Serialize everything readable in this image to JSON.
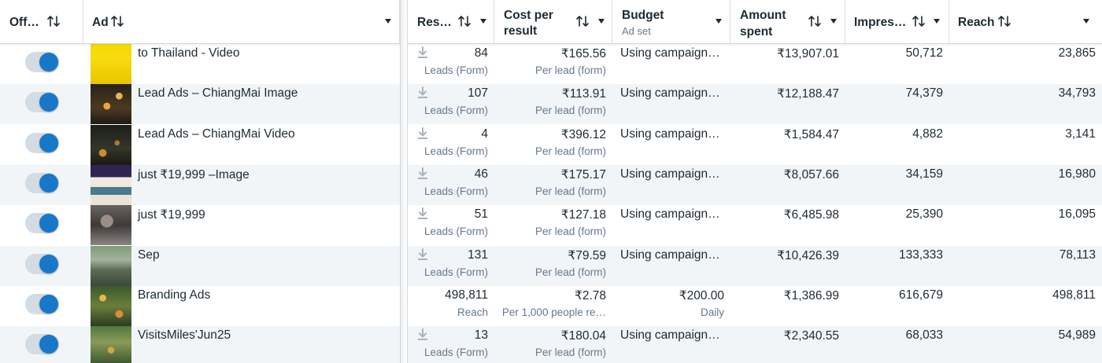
{
  "columns": {
    "toggle": "Off…",
    "ad": "Ad",
    "results": "Res…",
    "cost_line1": "Cost per",
    "cost_line2": "result",
    "budget": "Budget",
    "budget_sub": "Ad set",
    "spent_line1": "Amount",
    "spent_line2": "spent",
    "impressions": "Impres…",
    "reach": "Reach"
  },
  "rows": [
    {
      "on": true,
      "ad_name": "to Thailand - Video",
      "thumb": "yellow-banner",
      "results": "84",
      "results_type": "Leads (Form)",
      "download": true,
      "cost": "₹165.56",
      "cost_type": "Per lead (form)",
      "budget": "Using campaign…",
      "budget_sub": "",
      "spent": "₹13,907.01",
      "impressions": "50,712",
      "reach": "23,865"
    },
    {
      "on": true,
      "ad_name": "Lead Ads – ChiangMai Image",
      "thumb": "lanterns-night",
      "results": "107",
      "results_type": "Leads (Form)",
      "download": true,
      "cost": "₹113.91",
      "cost_type": "Per lead (form)",
      "budget": "Using campaign…",
      "budget_sub": "",
      "spent": "₹12,188.47",
      "impressions": "74,379",
      "reach": "34,793"
    },
    {
      "on": true,
      "ad_name": "Lead Ads – ChiangMai Video",
      "thumb": "lanterns-dark",
      "results": "4",
      "results_type": "Leads (Form)",
      "download": true,
      "cost": "₹396.12",
      "cost_type": "Per lead (form)",
      "budget": "Using campaign…",
      "budget_sub": "",
      "spent": "₹1,584.47",
      "impressions": "4,882",
      "reach": "3,141"
    },
    {
      "on": true,
      "ad_name": "just ₹19,999 –Image",
      "thumb": "flyer-collage",
      "results": "46",
      "results_type": "Leads (Form)",
      "download": true,
      "cost": "₹175.17",
      "cost_type": "Per lead (form)",
      "budget": "Using campaign…",
      "budget_sub": "",
      "spent": "₹8,057.66",
      "impressions": "34,159",
      "reach": "16,980"
    },
    {
      "on": true,
      "ad_name": "just ₹19,999",
      "thumb": "grey-photo",
      "results": "51",
      "results_type": "Leads (Form)",
      "download": true,
      "cost": "₹127.18",
      "cost_type": "Per lead (form)",
      "budget": "Using campaign…",
      "budget_sub": "",
      "spent": "₹6,485.98",
      "impressions": "25,390",
      "reach": "16,095"
    },
    {
      "on": true,
      "ad_name": "Sep",
      "thumb": "green-landscape",
      "results": "131",
      "results_type": "Leads (Form)",
      "download": true,
      "cost": "₹79.59",
      "cost_type": "Per lead (form)",
      "budget": "Using campaign…",
      "budget_sub": "",
      "spent": "₹10,426.39",
      "impressions": "133,333",
      "reach": "78,113"
    },
    {
      "on": true,
      "ad_name": "Branding Ads",
      "thumb": "festival-lights",
      "results": "498,811",
      "results_type": "Reach",
      "download": false,
      "cost": "₹2.78",
      "cost_type": "Per 1,000 people re…",
      "budget": "₹200.00",
      "budget_sub": "Daily",
      "spent": "₹1,386.99",
      "impressions": "616,679",
      "reach": "498,811"
    },
    {
      "on": true,
      "ad_name": "VisitsMiles'Jun25",
      "thumb": "festival-green",
      "results": "13",
      "results_type": "Leads (Form)",
      "download": true,
      "cost": "₹180.04",
      "cost_type": "Per lead (form)",
      "budget": "Using campaign…",
      "budget_sub": "",
      "spent": "₹2,340.55",
      "impressions": "68,033",
      "reach": "54,989"
    }
  ],
  "colors": {
    "toggle_on": "#1877c9",
    "toggle_track": "#d3dbe3",
    "alt_row": "#f2f5f8",
    "muted_text": "#67788a"
  }
}
